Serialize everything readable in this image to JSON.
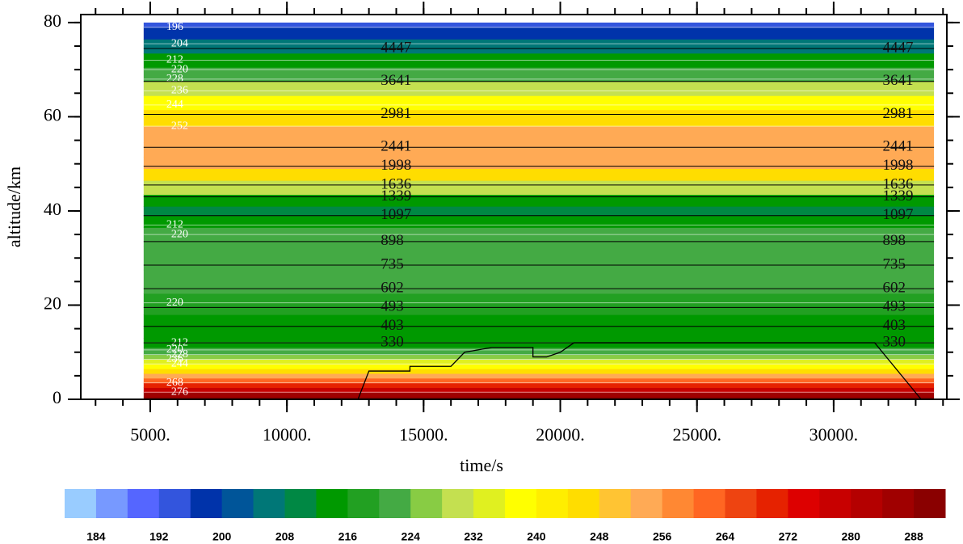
{
  "chart_data": {
    "type": "contour",
    "xlabel": "time/s",
    "ylabel": "altitude/km",
    "xlim": [
      2460,
      34140
    ],
    "ylim": [
      0,
      81.7
    ],
    "xticks": [
      {
        "value": 5000,
        "label": "5000."
      },
      {
        "value": 10000,
        "label": "10000."
      },
      {
        "value": 15000,
        "label": "15000."
      },
      {
        "value": 20000,
        "label": "20000."
      },
      {
        "value": 25000,
        "label": "25000."
      },
      {
        "value": 30000,
        "label": "30000."
      }
    ],
    "yticks": [
      0,
      20,
      40,
      60,
      80
    ],
    "xminor_step": 1000,
    "yminor_step": 5,
    "field_x": [
      4760,
      33670
    ],
    "profile": {
      "altitude": [
        0,
        1,
        2,
        3,
        4,
        5,
        6,
        7,
        8,
        9,
        10,
        12,
        14,
        16,
        20,
        25,
        30,
        35,
        38,
        40,
        42,
        45,
        48,
        50,
        53,
        56,
        60,
        63,
        66,
        69,
        72,
        75,
        78,
        80
      ],
      "temperature": [
        290,
        284,
        276,
        268,
        260,
        252,
        244,
        238,
        232,
        226,
        220,
        214,
        212,
        214,
        218,
        220,
        222,
        220,
        214,
        208,
        214,
        230,
        244,
        252,
        254,
        252,
        246,
        238,
        230,
        222,
        214,
        206,
        198,
        194
      ]
    },
    "line_contours": {
      "levels": [
        4447,
        3641,
        2981,
        2441,
        1998,
        1636,
        1339,
        1097,
        898,
        735,
        602,
        493,
        403,
        330
      ],
      "altitudes": [
        74.5,
        67.5,
        60.5,
        53.5,
        49.5,
        45.5,
        43,
        39,
        33.5,
        28.5,
        23.5,
        19.5,
        15.5,
        12
      ]
    },
    "isotherms": {
      "levels": [
        196,
        204,
        212,
        220,
        228,
        236,
        244,
        252,
        212,
        220,
        220,
        212,
        220,
        228,
        236,
        244,
        268,
        276
      ],
      "altitudes": [
        79,
        75.5,
        72,
        70,
        68,
        65.5,
        62.5,
        58,
        37,
        35,
        20.5,
        12,
        10.5,
        9.5,
        8.5,
        7.5,
        3.5,
        1.5
      ]
    },
    "boundary_line": {
      "x": [
        12600,
        13000,
        14500,
        14500,
        16000,
        16500,
        17500,
        19000,
        19000,
        19500,
        20000,
        20500,
        30000,
        31500,
        33200
      ],
      "y": [
        0,
        6,
        6,
        7,
        7,
        10,
        11,
        11,
        9,
        9,
        10,
        12,
        12,
        12,
        0
      ]
    },
    "colorbar": {
      "levels": [
        184,
        188,
        192,
        196,
        200,
        204,
        208,
        212,
        216,
        220,
        224,
        228,
        232,
        236,
        240,
        244,
        248,
        252,
        256,
        260,
        264,
        268,
        272,
        276,
        280,
        284,
        288
      ],
      "colors": [
        "#99ccff",
        "#7799ff",
        "#5566ff",
        "#3355dd",
        "#0033aa",
        "#005599",
        "#007777",
        "#008844",
        "#009900",
        "#22a022",
        "#44aa44",
        "#88cc44",
        "#c4e050",
        "#e0f020",
        "#ffff00",
        "#ffee00",
        "#ffdd00",
        "#ffc433",
        "#ffaa55",
        "#ff8833",
        "#ff6622",
        "#ee4411",
        "#e62200",
        "#dd0000",
        "#c80000",
        "#b40000",
        "#a00000",
        "#8a0000"
      ],
      "ticks": [
        184,
        192,
        200,
        208,
        216,
        224,
        232,
        240,
        248,
        256,
        264,
        272,
        280,
        288
      ]
    }
  }
}
